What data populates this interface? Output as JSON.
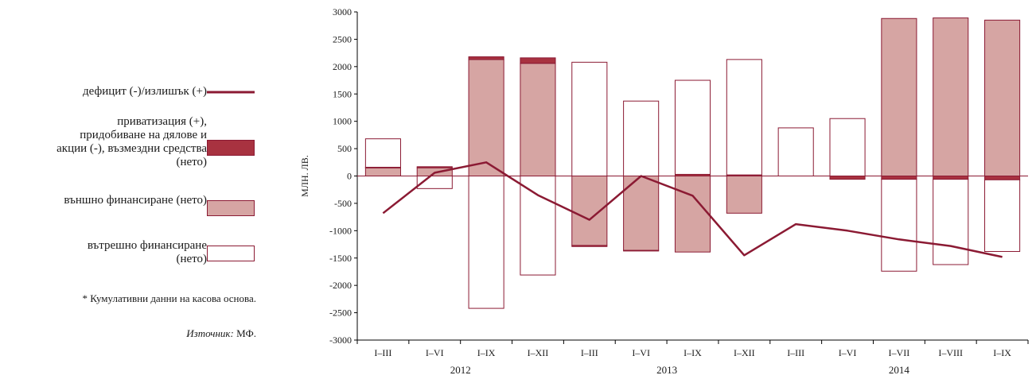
{
  "legend": {
    "deficit": "дефицит (-)/излишък (+)",
    "privatization": "приватизация (+), придобиване на дялове и акции (-), възмездни средства (нето)",
    "external": "външно финансиране (нето)",
    "internal": "вътрешно финансиране (нето)"
  },
  "notes": {
    "cumulative": "* Кумулативни данни на касова основа.",
    "source_label": "Източник:",
    "source_value": "МФ."
  },
  "colors": {
    "line": "#8b1a33",
    "privatization": "#a83240",
    "external": "#d6a5a3",
    "internal": "#ffffff",
    "border": "#8b1a33"
  },
  "chart_data": {
    "type": "bar",
    "ylabel": "МЛН. ЛВ.",
    "ylim": [
      -3000,
      3000
    ],
    "yticks": [
      -3000,
      -2500,
      -2000,
      -1500,
      -1000,
      -500,
      0,
      500,
      1000,
      1500,
      2000,
      2500,
      3000
    ],
    "categories": [
      "I–III",
      "I–VI",
      "I–IX",
      "I–XII",
      "I–III",
      "I–VI",
      "I–IX",
      "I–XII",
      "I–III",
      "I–VI",
      "I–VII",
      "I–VIII",
      "I–IX"
    ],
    "years": [
      {
        "label": "2012",
        "start": 0,
        "end": 3
      },
      {
        "label": "2013",
        "start": 4,
        "end": 7
      },
      {
        "label": "2014",
        "start": 8,
        "end": 12
      }
    ],
    "series": [
      {
        "name": "външно финансиране (нето)",
        "kind": "bar",
        "values": [
          150,
          150,
          2130,
          2060,
          -1270,
          -1360,
          -1390,
          -680,
          0,
          0,
          2880,
          2890,
          2850
        ]
      },
      {
        "name": "приватизация (+), придобиване на дялове и акции (-), възмездни средства (нето)",
        "kind": "bar",
        "values": [
          10,
          20,
          50,
          100,
          -20,
          -10,
          30,
          20,
          0,
          -60,
          -60,
          -60,
          -70
        ]
      },
      {
        "name": "вътрешно финансиране (нето)",
        "kind": "bar",
        "values": [
          520,
          -230,
          -2420,
          -1810,
          2080,
          1370,
          1720,
          2110,
          880,
          1050,
          -1680,
          -1560,
          -1310
        ]
      },
      {
        "name": "дефицит (-)/излишък (+)",
        "kind": "line",
        "values": [
          -680,
          60,
          250,
          -350,
          -800,
          0,
          -360,
          -1450,
          -880,
          -1000,
          -1160,
          -1280,
          -1480
        ]
      }
    ]
  }
}
